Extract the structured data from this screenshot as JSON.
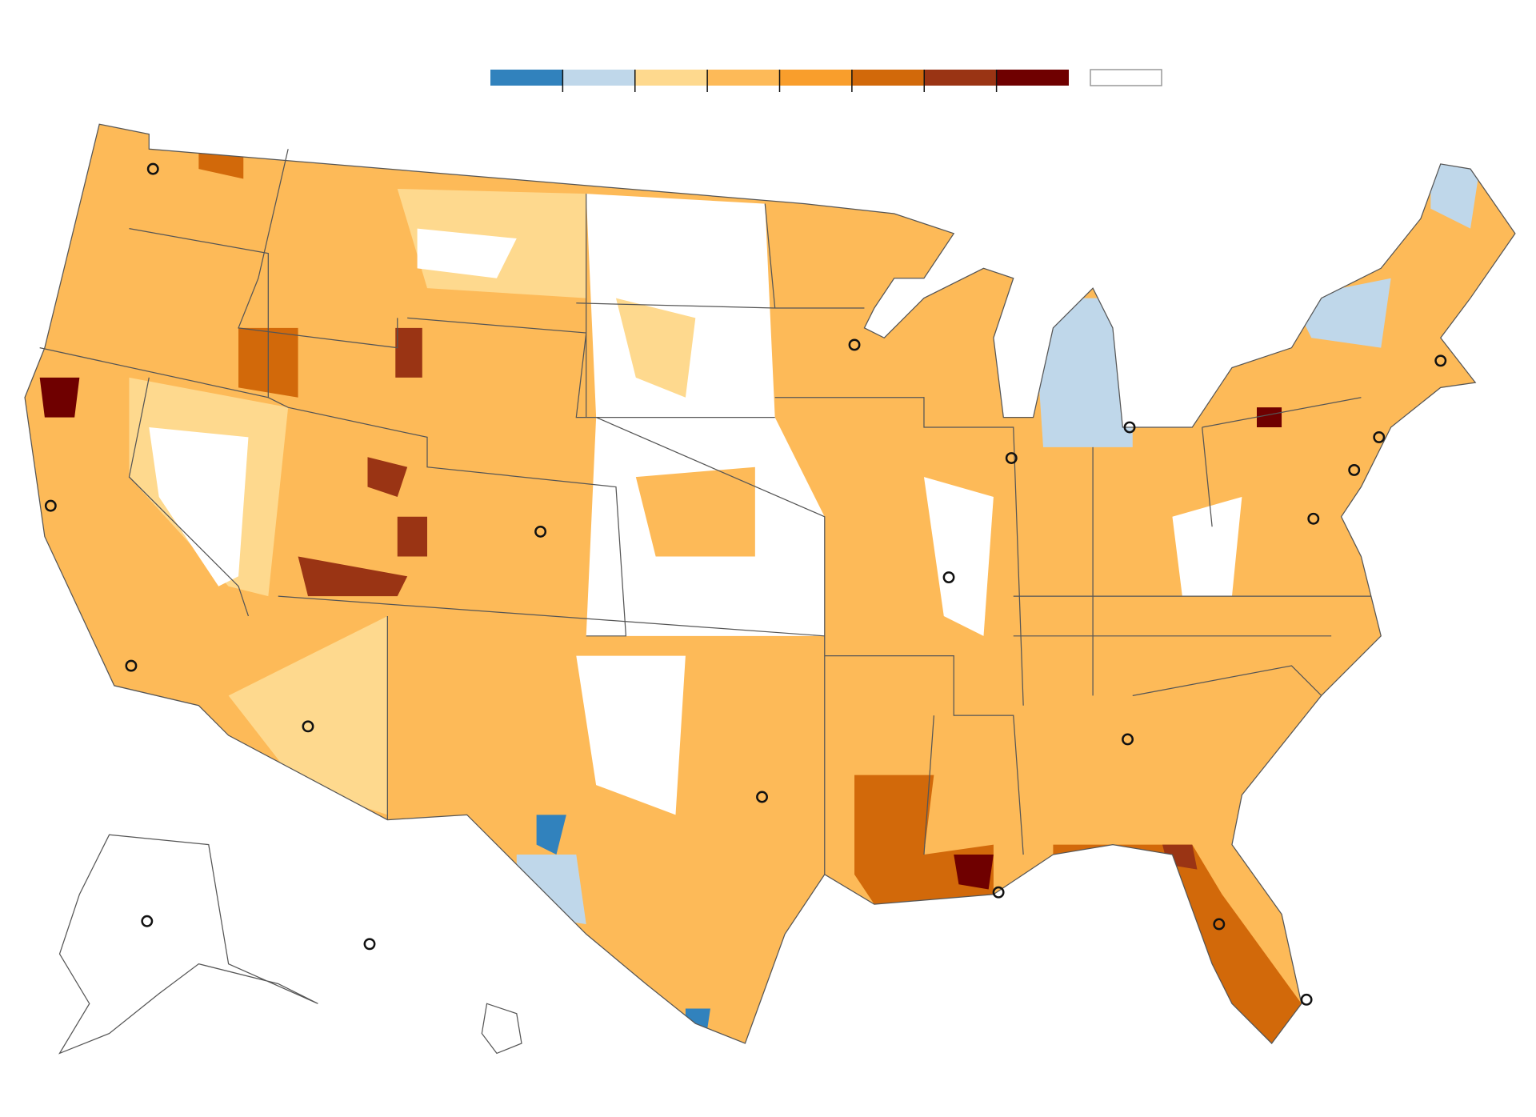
{
  "legend": {
    "colors": [
      "#3182bd",
      "#bfd7ea",
      "#fed98e",
      "#fdba58",
      "#f99e2c",
      "#d2690a",
      "#9a3414",
      "#6f0000"
    ],
    "no_data_color": "#ffffff",
    "no_data_border": "#999999"
  }
}
